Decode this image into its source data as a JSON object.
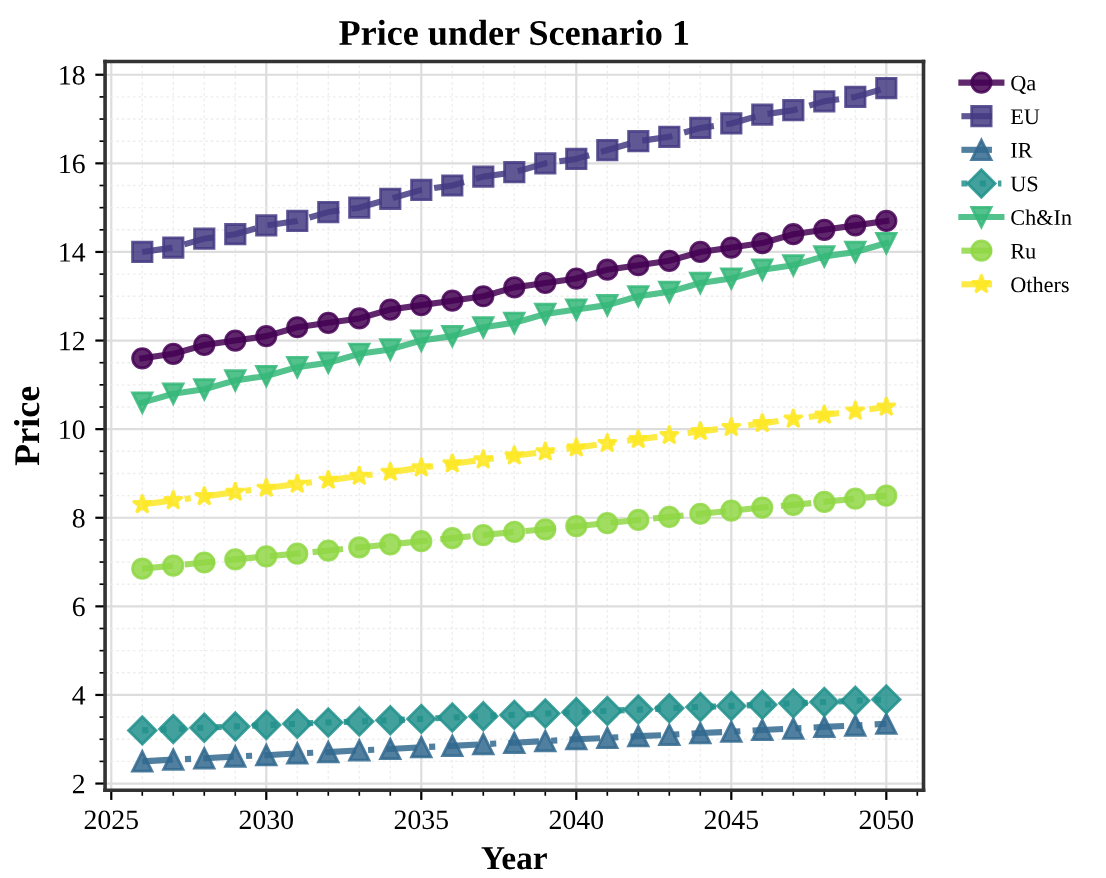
{
  "chart_data": {
    "type": "line",
    "title": "Price under Scenario 1",
    "xlabel": "Year",
    "ylabel": "Price",
    "x": [
      2026,
      2027,
      2028,
      2029,
      2030,
      2031,
      2032,
      2033,
      2034,
      2035,
      2036,
      2037,
      2038,
      2039,
      2040,
      2041,
      2042,
      2043,
      2044,
      2045,
      2046,
      2047,
      2048,
      2049,
      2050
    ],
    "xlim": [
      2024.8,
      2051.2
    ],
    "xticks": [
      2025,
      2030,
      2035,
      2040,
      2045,
      2050
    ],
    "ylim": [
      1.85,
      18.3
    ],
    "yticks": [
      2,
      4,
      6,
      8,
      10,
      12,
      14,
      16,
      18
    ],
    "grid": true,
    "legend": "right",
    "series": [
      {
        "name": "Qa",
        "color": "#440154",
        "marker": "circle",
        "line_style": "solid",
        "values": [
          11.6,
          11.7,
          11.9,
          12.0,
          12.1,
          12.3,
          12.4,
          12.5,
          12.7,
          12.8,
          12.9,
          13.0,
          13.2,
          13.3,
          13.4,
          13.6,
          13.7,
          13.8,
          14.0,
          14.1,
          14.2,
          14.4,
          14.5,
          14.6,
          14.7
        ]
      },
      {
        "name": "EU",
        "color": "#443983",
        "marker": "square",
        "line_style": "dashed",
        "values": [
          14.0,
          14.1,
          14.3,
          14.4,
          14.6,
          14.7,
          14.9,
          15.0,
          15.2,
          15.4,
          15.5,
          15.7,
          15.8,
          16.0,
          16.1,
          16.3,
          16.5,
          16.6,
          16.8,
          16.9,
          17.1,
          17.2,
          17.4,
          17.5,
          17.7
        ]
      },
      {
        "name": "IR",
        "color": "#31688e",
        "marker": "triangle",
        "line_style": "dashdot",
        "values": [
          2.5,
          2.54,
          2.57,
          2.61,
          2.64,
          2.68,
          2.71,
          2.75,
          2.78,
          2.82,
          2.85,
          2.89,
          2.92,
          2.96,
          3.0,
          3.03,
          3.07,
          3.1,
          3.14,
          3.17,
          3.21,
          3.24,
          3.28,
          3.31,
          3.35
        ]
      },
      {
        "name": "US",
        "color": "#21918c",
        "marker": "diamond",
        "line_style": "dotted",
        "values": [
          3.2,
          3.23,
          3.26,
          3.29,
          3.32,
          3.35,
          3.38,
          3.4,
          3.43,
          3.46,
          3.49,
          3.52,
          3.55,
          3.58,
          3.61,
          3.64,
          3.67,
          3.7,
          3.73,
          3.75,
          3.78,
          3.81,
          3.84,
          3.87,
          3.9
        ]
      },
      {
        "name": "Ch&In",
        "color": "#35b779",
        "marker": "triangle_down",
        "line_style": "solid",
        "values": [
          10.6,
          10.8,
          10.9,
          11.1,
          11.2,
          11.4,
          11.5,
          11.7,
          11.8,
          12.0,
          12.1,
          12.3,
          12.4,
          12.6,
          12.7,
          12.8,
          13.0,
          13.1,
          13.3,
          13.4,
          13.6,
          13.7,
          13.9,
          14.0,
          14.2
        ]
      },
      {
        "name": "Ru",
        "color": "#8fd744",
        "marker": "circle",
        "line_style": "dashed",
        "values": [
          6.85,
          6.92,
          6.99,
          7.06,
          7.13,
          7.19,
          7.26,
          7.33,
          7.4,
          7.47,
          7.54,
          7.61,
          7.68,
          7.74,
          7.81,
          7.88,
          7.95,
          8.02,
          8.09,
          8.16,
          8.23,
          8.29,
          8.36,
          8.43,
          8.5
        ]
      },
      {
        "name": "Others",
        "color": "#fde725",
        "marker": "star",
        "line_style": "dashdot",
        "values": [
          8.3,
          8.39,
          8.48,
          8.58,
          8.67,
          8.76,
          8.85,
          8.94,
          9.03,
          9.13,
          9.22,
          9.31,
          9.4,
          9.49,
          9.58,
          9.68,
          9.77,
          9.86,
          9.95,
          10.04,
          10.13,
          10.23,
          10.32,
          10.41,
          10.5
        ]
      }
    ]
  }
}
